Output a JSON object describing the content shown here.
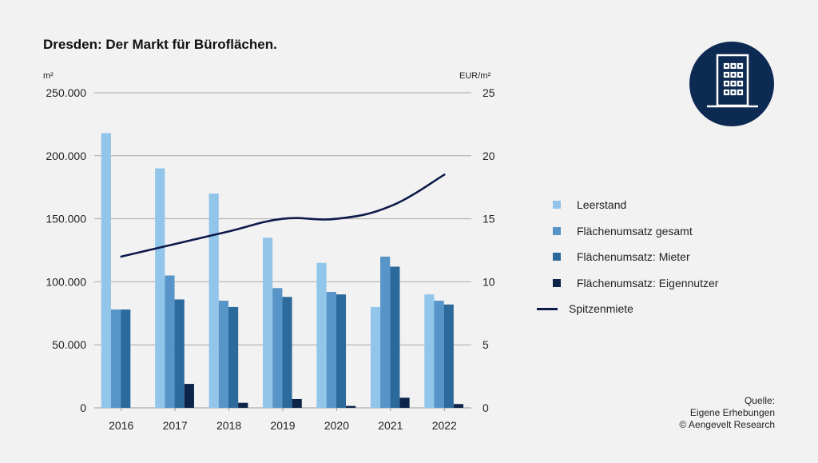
{
  "header": {
    "title": "Dresden: Der Markt für Büroflächen.",
    "unit_left": "m²",
    "unit_right": "EUR/m²"
  },
  "logo": {
    "icon": "office-building-icon",
    "background": "#0d2a52"
  },
  "source": {
    "line1": "Quelle:",
    "line2": "Eigene Erhebungen",
    "line3": "© Aengevelt Research"
  },
  "legend": [
    {
      "label": "Leerstand",
      "kind": "bar",
      "color": "#92c5ea"
    },
    {
      "label": "Flächenumsatz gesamt",
      "kind": "bar",
      "color": "#5795c8"
    },
    {
      "label": "Flächenumsatz: Mieter",
      "kind": "bar",
      "color": "#2c6a9c"
    },
    {
      "label": "Flächenumsatz: Eigennutzer",
      "kind": "bar",
      "color": "#0c2448"
    },
    {
      "label": "Spitzenmiete",
      "kind": "line",
      "color": "#0d1a4a"
    }
  ],
  "chart_data": {
    "type": "bar",
    "title": "Dresden: Der Markt für Büroflächen.",
    "xlabel": "",
    "ylabel": "m²",
    "y2label": "EUR/m²",
    "categories": [
      "2016",
      "2017",
      "2018",
      "2019",
      "2020",
      "2021",
      "2022"
    ],
    "ylim": [
      0,
      250000
    ],
    "y2lim": [
      0,
      25
    ],
    "yticks": [
      "0",
      "50.000",
      "100.000",
      "150.000",
      "200.000",
      "250.000"
    ],
    "y2ticks": [
      "0",
      "5",
      "10",
      "15",
      "20",
      "25"
    ],
    "grid": true,
    "legend_position": "right",
    "series": [
      {
        "name": "Leerstand",
        "type": "bar",
        "axis": "left",
        "color": "#92c5ea",
        "values": [
          218000,
          190000,
          170000,
          135000,
          115000,
          80000,
          90000
        ]
      },
      {
        "name": "Flächenumsatz gesamt",
        "type": "bar",
        "axis": "left",
        "color": "#5795c8",
        "values": [
          78000,
          105000,
          85000,
          95000,
          92000,
          120000,
          85000
        ]
      },
      {
        "name": "Flächenumsatz: Mieter",
        "type": "bar",
        "axis": "left",
        "color": "#2c6a9c",
        "values": [
          78000,
          86000,
          80000,
          88000,
          90000,
          112000,
          82000
        ]
      },
      {
        "name": "Flächenumsatz: Eigennutzer",
        "type": "bar",
        "axis": "left",
        "color": "#0c2448",
        "values": [
          0,
          19000,
          4000,
          7000,
          1500,
          8000,
          3000
        ]
      },
      {
        "name": "Spitzenmiete",
        "type": "line",
        "axis": "right",
        "color": "#0d1a4a",
        "values": [
          12.0,
          13.0,
          14.0,
          15.0,
          15.0,
          16.0,
          18.5
        ]
      }
    ]
  }
}
